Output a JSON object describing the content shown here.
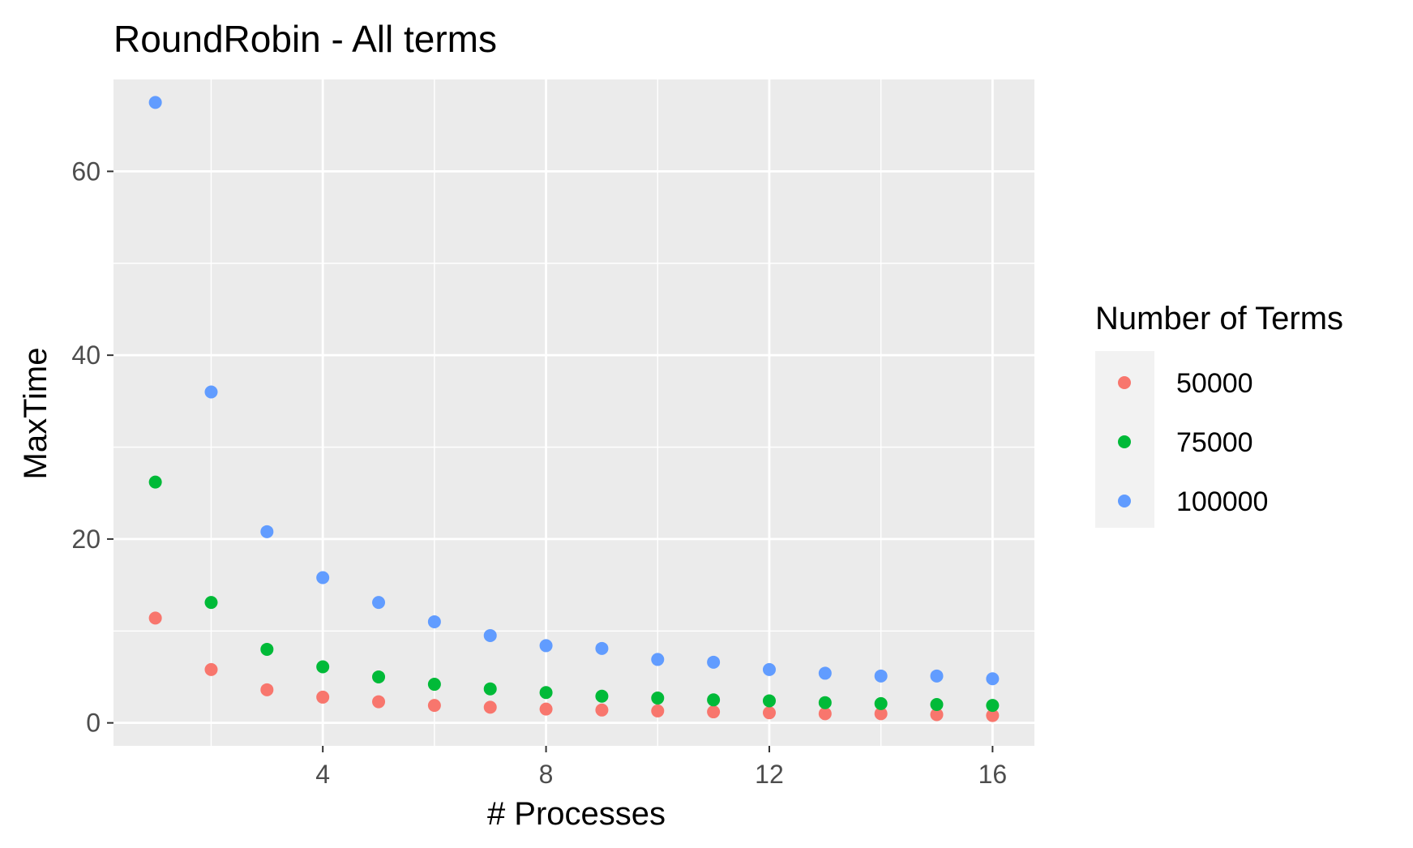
{
  "chart_data": {
    "type": "scatter",
    "title": "RoundRobin - All terms",
    "xlabel": "# Processes",
    "ylabel": "MaxTime",
    "xlim": [
      0.25,
      16.75
    ],
    "ylim": [
      -2.5,
      70
    ],
    "x_ticks": [
      4,
      8,
      12,
      16
    ],
    "y_ticks": [
      0,
      20,
      40,
      60
    ],
    "grid": true,
    "legend": {
      "title": "Number of Terms",
      "position": "right"
    },
    "x": [
      1,
      2,
      3,
      4,
      5,
      6,
      7,
      8,
      9,
      10,
      11,
      12,
      13,
      14,
      15,
      16
    ],
    "series": [
      {
        "name": "50000",
        "color": "#F8766D",
        "values": [
          11.4,
          5.8,
          3.6,
          2.8,
          2.3,
          1.9,
          1.7,
          1.5,
          1.4,
          1.3,
          1.2,
          1.1,
          1.0,
          1.0,
          0.9,
          0.8
        ]
      },
      {
        "name": "75000",
        "color": "#00BA38",
        "values": [
          26.2,
          13.1,
          8.0,
          6.1,
          5.0,
          4.2,
          3.7,
          3.3,
          2.9,
          2.7,
          2.5,
          2.4,
          2.2,
          2.1,
          2.0,
          1.9
        ]
      },
      {
        "name": "100000",
        "color": "#619CFF",
        "values": [
          67.5,
          36.0,
          20.8,
          15.8,
          13.1,
          11.0,
          9.5,
          8.4,
          8.1,
          6.9,
          6.6,
          5.8,
          5.4,
          5.1,
          5.1,
          4.8
        ]
      }
    ]
  }
}
